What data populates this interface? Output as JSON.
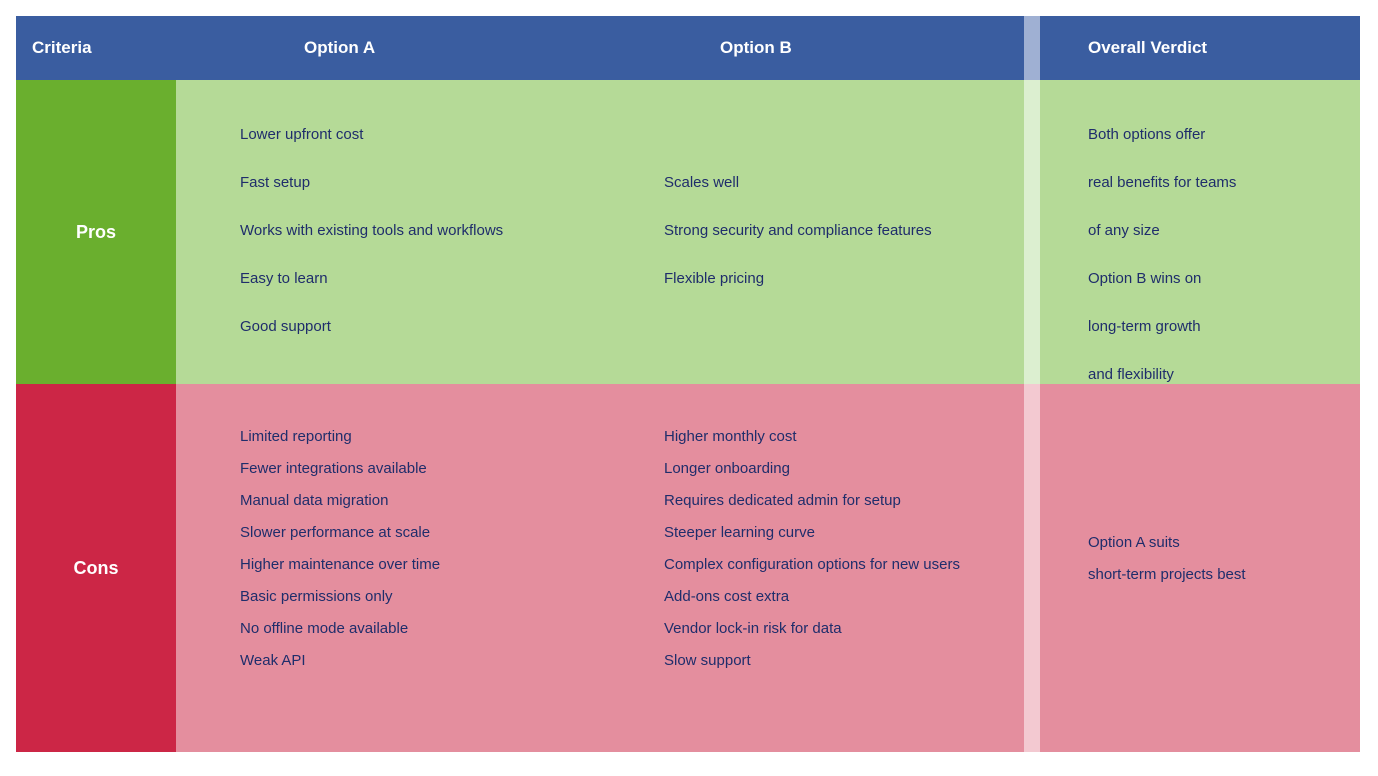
{
  "table": {
    "header": [
      "Criteria",
      "Option A",
      "Option B",
      "Overall Verdict"
    ],
    "rows": [
      {
        "label": "Pros",
        "cells": [
          [
            "Lower upfront cost",
            "Fast setup",
            "Works with existing tools and workflows",
            "Easy to learn",
            "Good support"
          ],
          [
            "Scales well",
            "Strong security and compliance features",
            "Flexible pricing"
          ],
          [
            "Both options offer",
            "real benefits for teams",
            "of any size",
            "Option B wins on",
            "long-term growth",
            "and flexibility"
          ]
        ]
      },
      {
        "label": "Cons",
        "cells": [
          [
            "Limited reporting",
            "Fewer integrations available",
            "Manual data migration",
            "Slower performance at scale",
            "Higher maintenance over time",
            "Basic permissions only",
            "No offline mode available",
            "Weak API"
          ],
          [
            "Higher monthly cost",
            "Longer onboarding",
            "Requires dedicated admin for setup",
            "Steeper learning curve",
            "Complex configuration options for new users",
            "Add-ons cost extra",
            "Vendor lock-in risk for data",
            "Slow support"
          ],
          [
            "Option A suits",
            "short-term projects best"
          ]
        ]
      }
    ]
  }
}
